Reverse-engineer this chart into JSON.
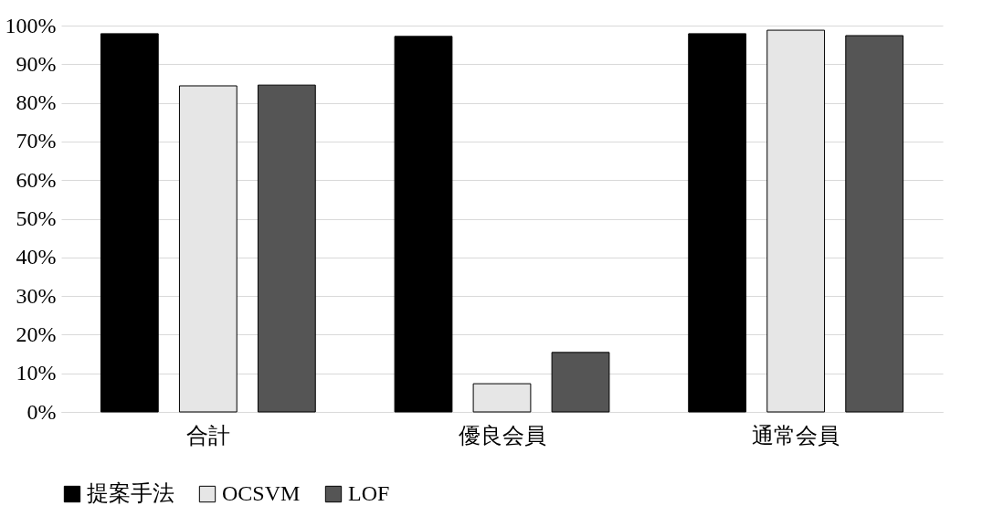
{
  "chart_data": {
    "type": "bar",
    "categories": [
      "合計",
      "優良会員",
      "通常会員"
    ],
    "series": [
      {
        "name": "提案手法",
        "color": "#000000",
        "values": [
          97.9,
          97.2,
          97.9
        ]
      },
      {
        "name": "OCSVM",
        "color": "#e6e6e6",
        "values": [
          84.4,
          7.3,
          98.8
        ]
      },
      {
        "name": "LOF",
        "color": "#555555",
        "values": [
          84.6,
          15.4,
          97.4
        ]
      }
    ],
    "ylim": [
      0,
      100
    ],
    "yticks": [
      {
        "value": 0,
        "label": "0%"
      },
      {
        "value": 10,
        "label": "10%"
      },
      {
        "value": 20,
        "label": "20%"
      },
      {
        "value": 30,
        "label": "30%"
      },
      {
        "value": 40,
        "label": "40%"
      },
      {
        "value": 50,
        "label": "50%"
      },
      {
        "value": 60,
        "label": "60%"
      },
      {
        "value": 70,
        "label": "70%"
      },
      {
        "value": 80,
        "label": "80%"
      },
      {
        "value": 90,
        "label": "90%"
      },
      {
        "value": 100,
        "label": "100%"
      }
    ],
    "grid": "y",
    "legend": "bottom"
  }
}
